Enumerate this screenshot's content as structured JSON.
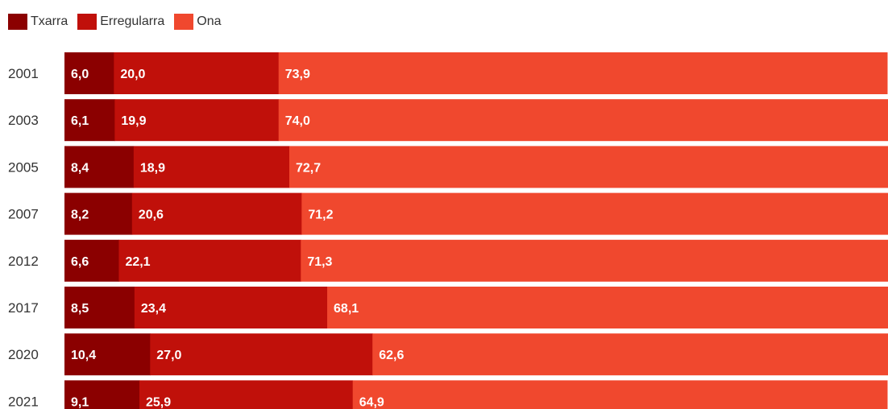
{
  "chart_data": {
    "type": "bar",
    "orientation": "horizontal",
    "stacked": true,
    "categories": [
      "2001",
      "2003",
      "2005",
      "2007",
      "2012",
      "2017",
      "2020",
      "2021"
    ],
    "series": [
      {
        "name": "Txarra",
        "color": "#8b0000",
        "values": [
          6.0,
          6.1,
          8.4,
          8.2,
          6.6,
          8.5,
          10.4,
          9.1
        ],
        "labels": [
          "6,0",
          "6,1",
          "8,4",
          "8,2",
          "6,6",
          "8,5",
          "10,4",
          "9,1"
        ]
      },
      {
        "name": "Erregularra",
        "color": "#c0100a",
        "values": [
          20.0,
          19.9,
          18.9,
          20.6,
          22.1,
          23.4,
          27.0,
          25.9
        ],
        "labels": [
          "20,0",
          "19,9",
          "18,9",
          "20,6",
          "22,1",
          "23,4",
          "27,0",
          "25,9"
        ]
      },
      {
        "name": "Ona",
        "color": "#f0482e",
        "values": [
          73.9,
          74.0,
          72.7,
          71.2,
          71.3,
          68.1,
          62.6,
          64.9
        ],
        "labels": [
          "73,9",
          "74,0",
          "72,7",
          "71,2",
          "71,3",
          "68,1",
          "62,6",
          "64,9"
        ]
      }
    ],
    "xlim": [
      0,
      100
    ],
    "legend_position": "top-left",
    "grid": false
  }
}
